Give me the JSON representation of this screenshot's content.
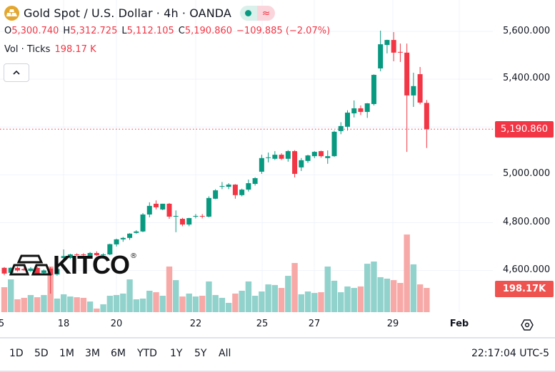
{
  "header": {
    "title": "Gold Spot / U.S. Dollar · 4h · OANDA",
    "symbol_icon": "gold-bars-icon",
    "status_badge": {
      "market_icon": "green-dot-icon",
      "delay_icon": "approx-icon",
      "delay_glyph": "≈"
    }
  },
  "ohlc": {
    "o_label": "O",
    "o": "5,300.740",
    "h_label": "H",
    "h": "5,312.725",
    "l_label": "L",
    "l": "5,112.105",
    "c_label": "C",
    "c": "5,190.860",
    "change": "−109.885 (−2.07%)"
  },
  "volume_legend": {
    "label": "Vol · Ticks",
    "value": "198.17 K"
  },
  "collapse_icon": "chevron-up-icon",
  "watermark": {
    "text": "KITCO",
    "mark": "®"
  },
  "price_axis": {
    "labels": [
      "5,600.000",
      "5,400.000",
      "5,000.000",
      "4,800.000",
      "4,600.000"
    ],
    "current_price": "5,190.860",
    "current_volume": "198.17K"
  },
  "time_axis": {
    "labels": [
      "5",
      "18",
      "20",
      "22",
      "25",
      "27",
      "29",
      "Feb"
    ],
    "settings_icon": "settings-icon"
  },
  "range_buttons": [
    "1D",
    "5D",
    "1M",
    "3M",
    "6M",
    "YTD",
    "1Y",
    "5Y",
    "All"
  ],
  "clock": "22:17:04 UTC-5",
  "colors": {
    "up": "#089981",
    "down": "#f23645",
    "vol_up": "#92d2cc",
    "vol_down": "#f7a9a7",
    "gold": "#e3a72f"
  },
  "chart_data": {
    "type": "candlestick",
    "interval": "4h",
    "ylim": [
      4480,
      5720
    ],
    "y_ticks": [
      4600,
      4800,
      5000,
      5200,
      5400,
      5600
    ],
    "grid": true,
    "last_price": 5190.86,
    "candles": [
      [
        4611,
        4614,
        4580,
        4587
      ],
      [
        4590,
        4614,
        4585,
        4611
      ],
      [
        4611,
        4616,
        4595,
        4600
      ],
      [
        4606,
        4612,
        4598,
        4601
      ],
      [
        4598,
        4614,
        4594,
        4608
      ],
      [
        4611,
        4615,
        4582,
        4587
      ],
      [
        4590,
        4604,
        4586,
        4600
      ],
      [
        4608,
        4614,
        4503,
        4581
      ],
      [
        4583,
        4612,
        4578,
        4606
      ],
      [
        4652,
        4688,
        4645,
        4660
      ],
      [
        4652,
        4670,
        4648,
        4667
      ],
      [
        4667,
        4672,
        4660,
        4665
      ],
      [
        4667,
        4672,
        4660,
        4664
      ],
      [
        4661,
        4677,
        4658,
        4673
      ],
      [
        4673,
        4680,
        4660,
        4664
      ],
      [
        4664,
        4672,
        4660,
        4667
      ],
      [
        4667,
        4712,
        4664,
        4710
      ],
      [
        4709,
        4733,
        4700,
        4730
      ],
      [
        4730,
        4740,
        4720,
        4736
      ],
      [
        4736,
        4756,
        4728,
        4754
      ],
      [
        4757,
        4768,
        4754,
        4763
      ],
      [
        4763,
        4840,
        4760,
        4834
      ],
      [
        4834,
        4885,
        4822,
        4870
      ],
      [
        4879,
        4893,
        4855,
        4864
      ],
      [
        4855,
        4879,
        4852,
        4879
      ],
      [
        4879,
        4882,
        4816,
        4825
      ],
      [
        4825,
        4851,
        4760,
        4828
      ],
      [
        4816,
        4820,
        4785,
        4792
      ],
      [
        4792,
        4820,
        4785,
        4819
      ],
      [
        4825,
        4836,
        4818,
        4828
      ],
      [
        4828,
        4836,
        4818,
        4825
      ],
      [
        4825,
        4910,
        4822,
        4903
      ],
      [
        4900,
        4940,
        4898,
        4935
      ],
      [
        4950,
        4970,
        4940,
        4953
      ],
      [
        4950,
        4965,
        4940,
        4959
      ],
      [
        4959,
        4961,
        4900,
        4915
      ],
      [
        4915,
        4942,
        4910,
        4938
      ],
      [
        4938,
        4980,
        4930,
        4965
      ],
      [
        4962,
        4990,
        4955,
        4986
      ],
      [
        5013,
        5084,
        5004,
        5070
      ],
      [
        5070,
        5093,
        5052,
        5073
      ],
      [
        5067,
        5099,
        5062,
        5084
      ],
      [
        5084,
        5090,
        5062,
        5067
      ],
      [
        5067,
        5103,
        5055,
        5099
      ],
      [
        5099,
        5103,
        4989,
        5004
      ],
      [
        5031,
        5070,
        5016,
        5061
      ],
      [
        5058,
        5084,
        5050,
        5081
      ],
      [
        5078,
        5099,
        5070,
        5096
      ],
      [
        5099,
        5101,
        5072,
        5078
      ],
      [
        5070,
        5102,
        5046,
        5078
      ],
      [
        5078,
        5185,
        5075,
        5180
      ],
      [
        5183,
        5220,
        5170,
        5204
      ],
      [
        5201,
        5270,
        5185,
        5260
      ],
      [
        5257,
        5311,
        5240,
        5278
      ],
      [
        5278,
        5290,
        5250,
        5263
      ],
      [
        5263,
        5300,
        5238,
        5299
      ],
      [
        5296,
        5420,
        5290,
        5418
      ],
      [
        5445,
        5603,
        5433,
        5546
      ],
      [
        5543,
        5565,
        5508,
        5564
      ],
      [
        5564,
        5597,
        5475,
        5511
      ],
      [
        5514,
        5549,
        5472,
        5511
      ],
      [
        5511,
        5549,
        5096,
        5332
      ],
      [
        5332,
        5427,
        5284,
        5371
      ],
      [
        5421,
        5451,
        5295,
        5302
      ],
      [
        5300.74,
        5312.725,
        5112.105,
        5190.86
      ]
    ],
    "volume_k": [
      204,
      268,
      105,
      117,
      140,
      122,
      140,
      373,
      111,
      146,
      128,
      122,
      117,
      87,
      29,
      64,
      134,
      140,
      152,
      268,
      105,
      111,
      175,
      163,
      134,
      373,
      262,
      128,
      152,
      128,
      134,
      251,
      140,
      117,
      76,
      152,
      175,
      251,
      134,
      169,
      227,
      222,
      198,
      297,
      402,
      146,
      169,
      157,
      163,
      373,
      257,
      163,
      210,
      198,
      210,
      396,
      414,
      286,
      274,
      262,
      239,
      635,
      391,
      227,
      198.17
    ]
  }
}
